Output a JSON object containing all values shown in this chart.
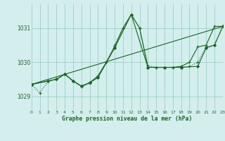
{
  "title": "Graphe pression niveau de la mer (hPa)",
  "background_color": "#d4eeee",
  "grid_color": "#88ccbb",
  "line_color": "#1a6620",
  "xlim": [
    0,
    23
  ],
  "ylim": [
    1028.6,
    1031.7
  ],
  "yticks": [
    1029,
    1030,
    1031
  ],
  "xticks": [
    0,
    1,
    2,
    3,
    4,
    5,
    6,
    7,
    8,
    9,
    10,
    11,
    12,
    13,
    14,
    15,
    16,
    17,
    18,
    19,
    20,
    21,
    22,
    23
  ],
  "line_dotted_x": [
    0,
    1,
    2,
    3,
    4,
    5,
    6,
    7,
    8,
    9,
    10,
    11,
    12,
    13,
    14,
    15,
    16,
    17,
    18,
    19,
    20,
    21,
    22,
    23
  ],
  "line_dotted_y": [
    1029.35,
    1029.1,
    1029.45,
    1029.5,
    1029.65,
    1029.45,
    1029.28,
    1029.38,
    1029.6,
    1030.0,
    1030.5,
    1031.0,
    1031.4,
    1031.0,
    1029.9,
    1029.85,
    1029.85,
    1029.85,
    1029.85,
    1029.88,
    1030.0,
    1030.45,
    1030.5,
    1031.05
  ],
  "line_solid_plus_x": [
    0,
    2,
    3,
    4,
    5,
    6,
    7,
    8,
    9,
    10,
    11,
    12,
    13,
    14,
    15,
    16,
    17,
    18,
    19,
    20,
    21,
    22,
    23
  ],
  "line_solid_plus_y": [
    1029.35,
    1029.45,
    1029.5,
    1029.65,
    1029.45,
    1029.3,
    1029.4,
    1029.6,
    1030.0,
    1030.45,
    1031.0,
    1031.4,
    1031.0,
    1029.85,
    1029.85,
    1029.85,
    1029.85,
    1029.88,
    1030.0,
    1030.45,
    1030.5,
    1031.05,
    1031.05
  ],
  "line_diamond_x": [
    0,
    2,
    3,
    4,
    5,
    6,
    7,
    8,
    10,
    12,
    14,
    16,
    18,
    20,
    21,
    22,
    23
  ],
  "line_diamond_y": [
    1029.35,
    1029.45,
    1029.5,
    1029.65,
    1029.45,
    1029.3,
    1029.4,
    1029.55,
    1030.42,
    1031.4,
    1029.85,
    1029.85,
    1029.85,
    1029.88,
    1030.42,
    1030.5,
    1031.05
  ],
  "line_trend_x": [
    0,
    23
  ],
  "line_trend_y": [
    1029.35,
    1031.05
  ]
}
